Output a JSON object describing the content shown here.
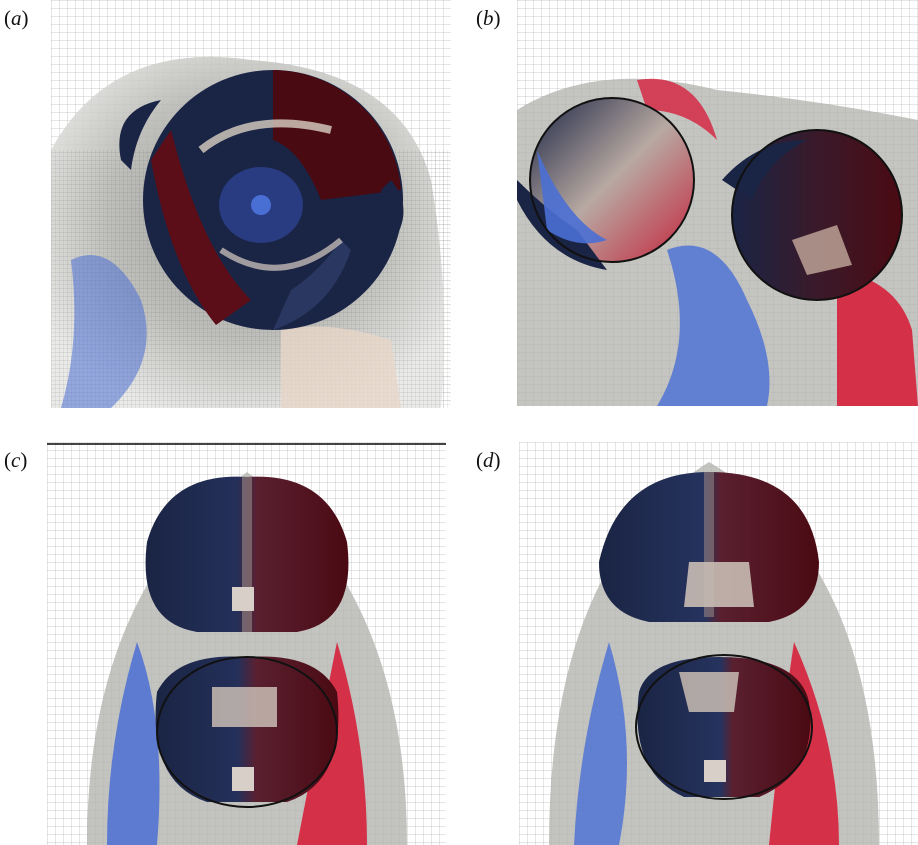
{
  "figure": {
    "panels": [
      {
        "id": "a",
        "label_open": "(",
        "label_letter": "a",
        "label_close": ")"
      },
      {
        "id": "b",
        "label_open": "(",
        "label_letter": "b",
        "label_close": ")"
      },
      {
        "id": "c",
        "label_open": "(",
        "label_letter": "c",
        "label_close": ")"
      },
      {
        "id": "d",
        "label_open": "(",
        "label_letter": "d",
        "label_close": ")"
      }
    ]
  },
  "colors": {
    "dark_navy": "#15203f",
    "dark_red": "#4a0a12",
    "mid_blue": "#4a6fd4",
    "bright_red": "#d6213c",
    "halo_gray": "#9a9a98",
    "light_gray": "#d8d8d6",
    "cream": "#e8d6c8",
    "grid_line": "#555555"
  }
}
